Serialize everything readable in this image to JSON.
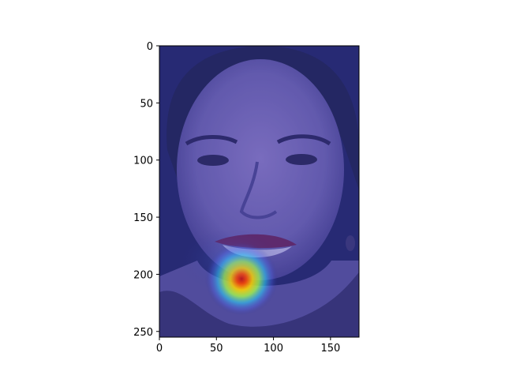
{
  "chart_data": {
    "type": "heatmap",
    "title": "",
    "xlabel": "",
    "ylabel": "",
    "description_layer": "face photograph underlay with attention heatmap overlay (jet colormap)",
    "xlim": [
      0,
      175
    ],
    "ylim": [
      255,
      0
    ],
    "x_ticks": [
      0,
      50,
      100,
      150
    ],
    "x_tick_labels": [
      "0",
      "50",
      "100",
      "150"
    ],
    "y_ticks": [
      0,
      50,
      100,
      150,
      200,
      250
    ],
    "y_tick_labels": [
      "0",
      "50",
      "100",
      "150",
      "200",
      "250"
    ],
    "grid": false,
    "colormap": "jet",
    "background_tint": "#2b2f8f",
    "hotspots": [
      {
        "x": 72,
        "y": 204,
        "intensity": 1.0,
        "spread_x": 16,
        "spread_y": 16
      },
      {
        "x": 62,
        "y": 188,
        "intensity": 0.22,
        "spread_x": 22,
        "spread_y": 14
      }
    ]
  }
}
